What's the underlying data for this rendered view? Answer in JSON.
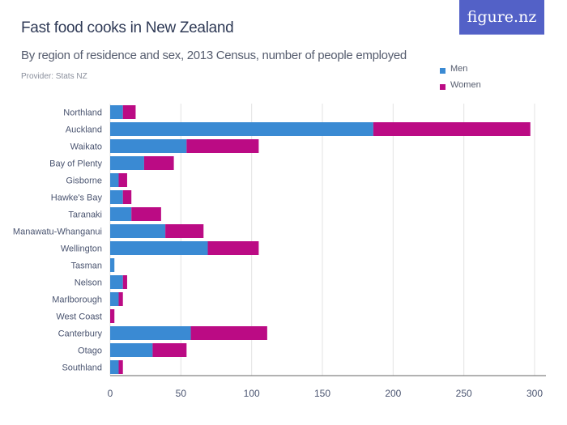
{
  "header": {
    "title": "Fast food cooks in New Zealand",
    "subtitle": "By region of residence and sex, 2013 Census, number of people employed",
    "provider": "Provider: Stats NZ",
    "logo": "figure.nz"
  },
  "chart_data": {
    "type": "bar",
    "orientation": "horizontal",
    "stacked": true,
    "title": "Fast food cooks in New Zealand",
    "categories": [
      "Northland",
      "Auckland",
      "Waikato",
      "Bay of Plenty",
      "Gisborne",
      "Hawke's Bay",
      "Taranaki",
      "Manawatu-Whanganui",
      "Wellington",
      "Tasman",
      "Nelson",
      "Marlborough",
      "West Coast",
      "Canterbury",
      "Otago",
      "Southland"
    ],
    "series": [
      {
        "name": "Men",
        "color": "#3a8ad3",
        "values": [
          9,
          186,
          54,
          24,
          6,
          9,
          15,
          39,
          69,
          3,
          9,
          6,
          0,
          57,
          30,
          6
        ]
      },
      {
        "name": "Women",
        "color": "#bb0b84",
        "values": [
          9,
          111,
          51,
          21,
          6,
          6,
          21,
          27,
          36,
          0,
          3,
          3,
          3,
          54,
          24,
          3
        ]
      }
    ],
    "xlim": [
      0,
      300
    ],
    "xticks": [
      0,
      50,
      100,
      150,
      200,
      250,
      300
    ],
    "grid": true,
    "legend": "top-right"
  }
}
